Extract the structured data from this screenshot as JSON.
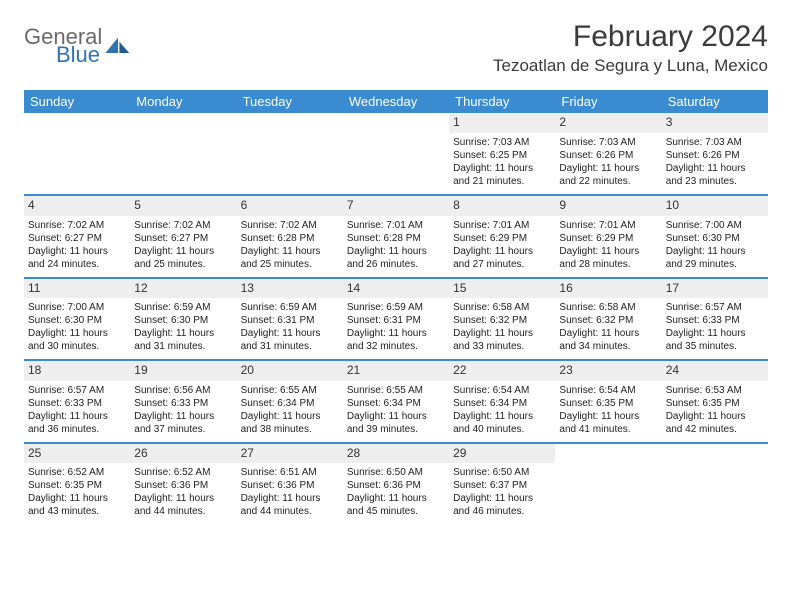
{
  "logo": {
    "text1": "General",
    "text2": "Blue"
  },
  "title": "February 2024",
  "location": "Tezoatlan de Segura y Luna, Mexico",
  "colors": {
    "header_bg": "#3b8bd0",
    "header_text": "#ffffff",
    "row_border": "#3b8bd0",
    "daynum_bg": "#eeeeee",
    "text": "#222222",
    "logo_gray": "#6a6a6a",
    "logo_blue": "#2e74b5",
    "page_bg": "#ffffff"
  },
  "typography": {
    "title_fontsize": 30,
    "location_fontsize": 17,
    "dayheader_fontsize": 13,
    "daynum_fontsize": 12,
    "info_fontsize": 10
  },
  "day_headers": [
    "Sunday",
    "Monday",
    "Tuesday",
    "Wednesday",
    "Thursday",
    "Friday",
    "Saturday"
  ],
  "weeks": [
    [
      null,
      null,
      null,
      null,
      {
        "n": "1",
        "sr": "Sunrise: 7:03 AM",
        "ss": "Sunset: 6:25 PM",
        "dl": "Daylight: 11 hours and 21 minutes."
      },
      {
        "n": "2",
        "sr": "Sunrise: 7:03 AM",
        "ss": "Sunset: 6:26 PM",
        "dl": "Daylight: 11 hours and 22 minutes."
      },
      {
        "n": "3",
        "sr": "Sunrise: 7:03 AM",
        "ss": "Sunset: 6:26 PM",
        "dl": "Daylight: 11 hours and 23 minutes."
      }
    ],
    [
      {
        "n": "4",
        "sr": "Sunrise: 7:02 AM",
        "ss": "Sunset: 6:27 PM",
        "dl": "Daylight: 11 hours and 24 minutes."
      },
      {
        "n": "5",
        "sr": "Sunrise: 7:02 AM",
        "ss": "Sunset: 6:27 PM",
        "dl": "Daylight: 11 hours and 25 minutes."
      },
      {
        "n": "6",
        "sr": "Sunrise: 7:02 AM",
        "ss": "Sunset: 6:28 PM",
        "dl": "Daylight: 11 hours and 25 minutes."
      },
      {
        "n": "7",
        "sr": "Sunrise: 7:01 AM",
        "ss": "Sunset: 6:28 PM",
        "dl": "Daylight: 11 hours and 26 minutes."
      },
      {
        "n": "8",
        "sr": "Sunrise: 7:01 AM",
        "ss": "Sunset: 6:29 PM",
        "dl": "Daylight: 11 hours and 27 minutes."
      },
      {
        "n": "9",
        "sr": "Sunrise: 7:01 AM",
        "ss": "Sunset: 6:29 PM",
        "dl": "Daylight: 11 hours and 28 minutes."
      },
      {
        "n": "10",
        "sr": "Sunrise: 7:00 AM",
        "ss": "Sunset: 6:30 PM",
        "dl": "Daylight: 11 hours and 29 minutes."
      }
    ],
    [
      {
        "n": "11",
        "sr": "Sunrise: 7:00 AM",
        "ss": "Sunset: 6:30 PM",
        "dl": "Daylight: 11 hours and 30 minutes."
      },
      {
        "n": "12",
        "sr": "Sunrise: 6:59 AM",
        "ss": "Sunset: 6:30 PM",
        "dl": "Daylight: 11 hours and 31 minutes."
      },
      {
        "n": "13",
        "sr": "Sunrise: 6:59 AM",
        "ss": "Sunset: 6:31 PM",
        "dl": "Daylight: 11 hours and 31 minutes."
      },
      {
        "n": "14",
        "sr": "Sunrise: 6:59 AM",
        "ss": "Sunset: 6:31 PM",
        "dl": "Daylight: 11 hours and 32 minutes."
      },
      {
        "n": "15",
        "sr": "Sunrise: 6:58 AM",
        "ss": "Sunset: 6:32 PM",
        "dl": "Daylight: 11 hours and 33 minutes."
      },
      {
        "n": "16",
        "sr": "Sunrise: 6:58 AM",
        "ss": "Sunset: 6:32 PM",
        "dl": "Daylight: 11 hours and 34 minutes."
      },
      {
        "n": "17",
        "sr": "Sunrise: 6:57 AM",
        "ss": "Sunset: 6:33 PM",
        "dl": "Daylight: 11 hours and 35 minutes."
      }
    ],
    [
      {
        "n": "18",
        "sr": "Sunrise: 6:57 AM",
        "ss": "Sunset: 6:33 PM",
        "dl": "Daylight: 11 hours and 36 minutes."
      },
      {
        "n": "19",
        "sr": "Sunrise: 6:56 AM",
        "ss": "Sunset: 6:33 PM",
        "dl": "Daylight: 11 hours and 37 minutes."
      },
      {
        "n": "20",
        "sr": "Sunrise: 6:55 AM",
        "ss": "Sunset: 6:34 PM",
        "dl": "Daylight: 11 hours and 38 minutes."
      },
      {
        "n": "21",
        "sr": "Sunrise: 6:55 AM",
        "ss": "Sunset: 6:34 PM",
        "dl": "Daylight: 11 hours and 39 minutes."
      },
      {
        "n": "22",
        "sr": "Sunrise: 6:54 AM",
        "ss": "Sunset: 6:34 PM",
        "dl": "Daylight: 11 hours and 40 minutes."
      },
      {
        "n": "23",
        "sr": "Sunrise: 6:54 AM",
        "ss": "Sunset: 6:35 PM",
        "dl": "Daylight: 11 hours and 41 minutes."
      },
      {
        "n": "24",
        "sr": "Sunrise: 6:53 AM",
        "ss": "Sunset: 6:35 PM",
        "dl": "Daylight: 11 hours and 42 minutes."
      }
    ],
    [
      {
        "n": "25",
        "sr": "Sunrise: 6:52 AM",
        "ss": "Sunset: 6:35 PM",
        "dl": "Daylight: 11 hours and 43 minutes."
      },
      {
        "n": "26",
        "sr": "Sunrise: 6:52 AM",
        "ss": "Sunset: 6:36 PM",
        "dl": "Daylight: 11 hours and 44 minutes."
      },
      {
        "n": "27",
        "sr": "Sunrise: 6:51 AM",
        "ss": "Sunset: 6:36 PM",
        "dl": "Daylight: 11 hours and 44 minutes."
      },
      {
        "n": "28",
        "sr": "Sunrise: 6:50 AM",
        "ss": "Sunset: 6:36 PM",
        "dl": "Daylight: 11 hours and 45 minutes."
      },
      {
        "n": "29",
        "sr": "Sunrise: 6:50 AM",
        "ss": "Sunset: 6:37 PM",
        "dl": "Daylight: 11 hours and 46 minutes."
      },
      null,
      null
    ]
  ]
}
